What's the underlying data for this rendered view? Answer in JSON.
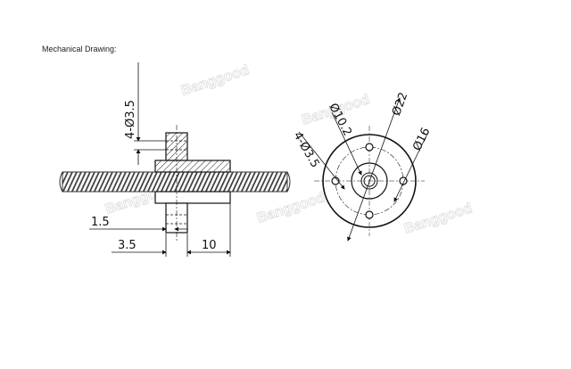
{
  "heading": "Mechanical Drawing:",
  "watermark": "Banggood",
  "colors": {
    "line": "#111111",
    "thread": "#555555",
    "hatch": "#222222",
    "watermark": "#dcdcdc"
  },
  "side_view": {
    "dims": {
      "holes_dia": "4-Ø3.5",
      "flange_offset": "1.5",
      "flange_thickness": "3.5",
      "nut_length": "10"
    }
  },
  "front_view": {
    "dims": {
      "inner_dia": "Ø10.2",
      "holes_dia": "4-Ø3.5",
      "outer_dia": "Ø22",
      "pcd_dia": "Ø16"
    }
  }
}
